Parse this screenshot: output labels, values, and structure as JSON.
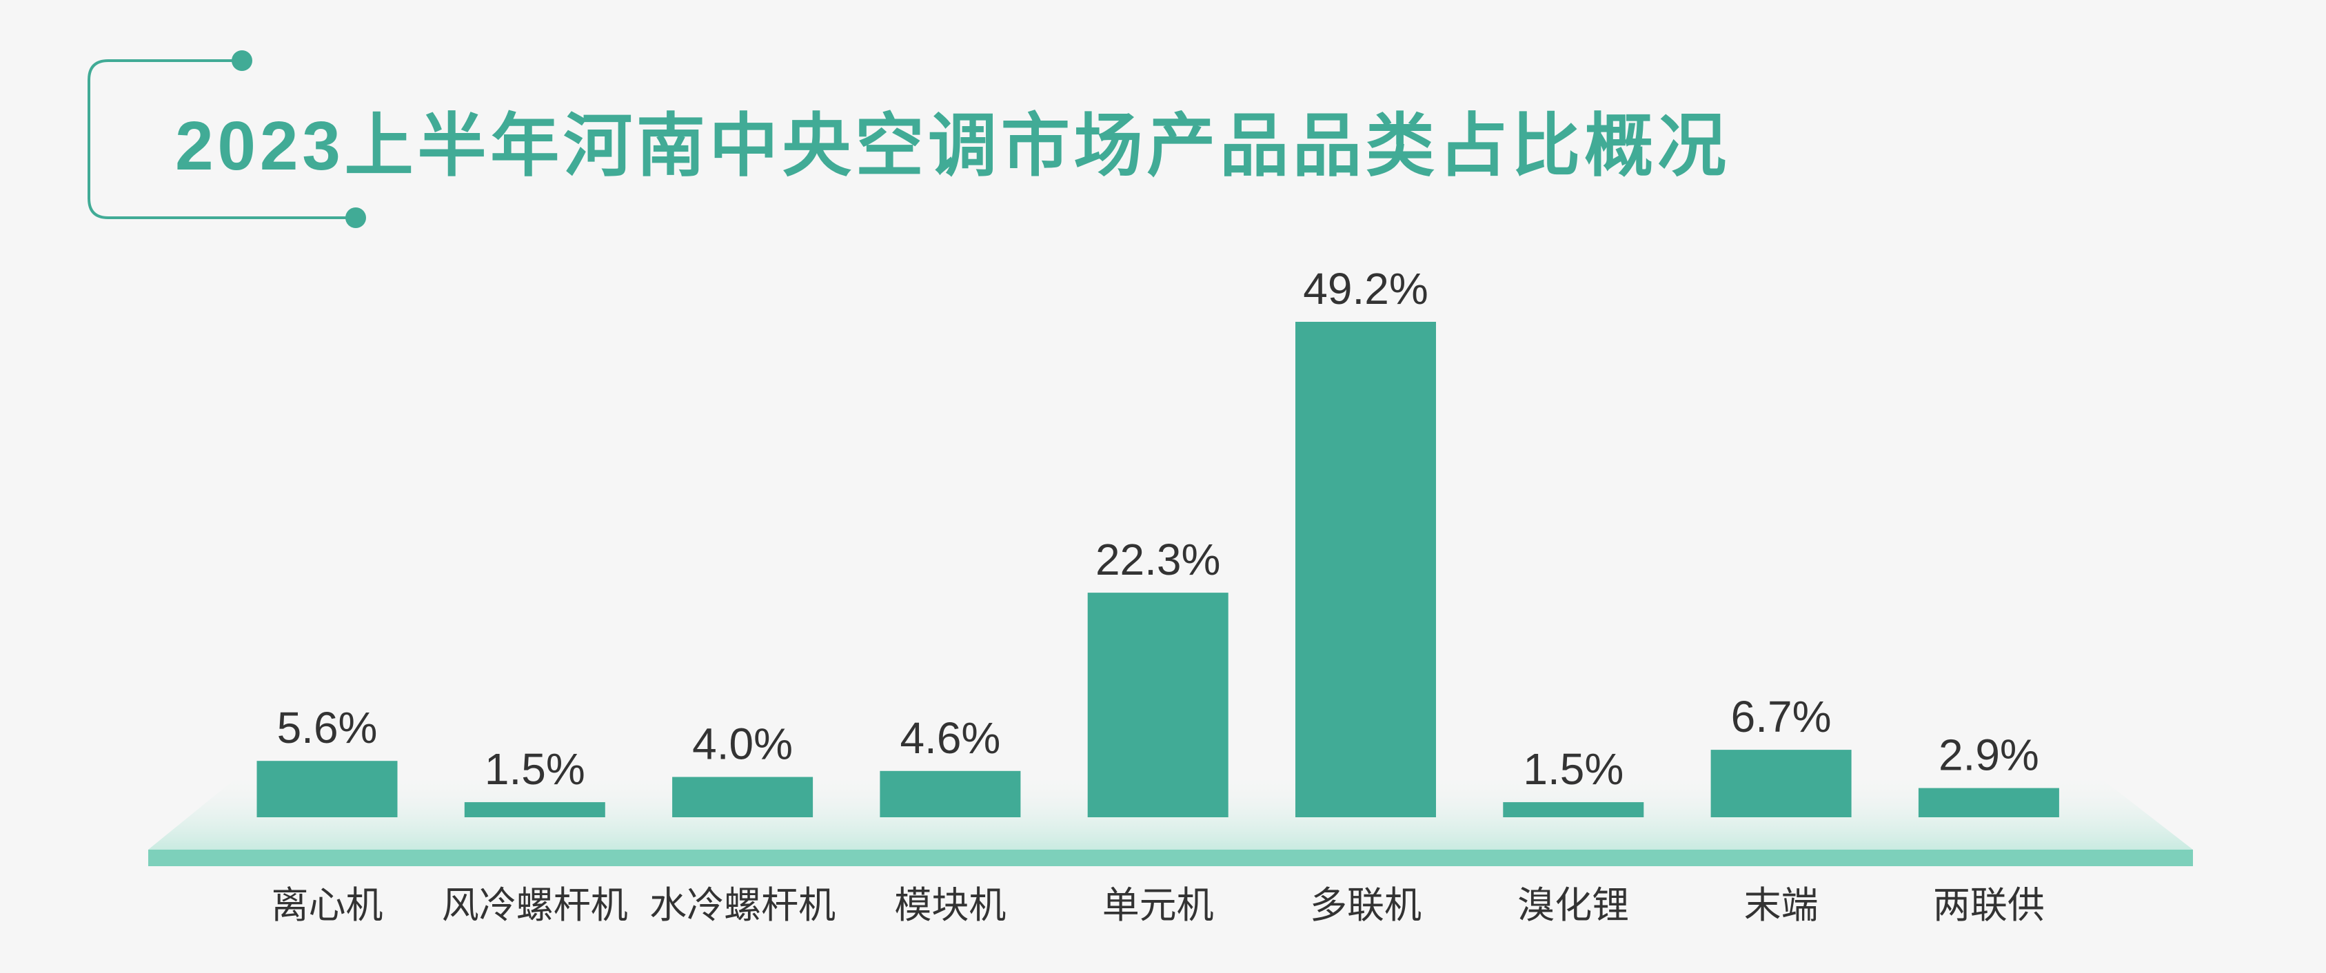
{
  "colors": {
    "accent": "#41ab96",
    "platform_strip": "#7dd0bb",
    "platform_glow": "#c9ebe1",
    "text": "#333333",
    "background": "#f6f6f6"
  },
  "chart_data": {
    "type": "bar",
    "title": "2023上半年河南中央空调市场产品品类占比概况",
    "xlabel": "",
    "ylabel": "",
    "categories": [
      "离心机",
      "风冷螺杆机",
      "水冷螺杆机",
      "模块机",
      "单元机",
      "多联机",
      "溴化锂",
      "末端",
      "两联供"
    ],
    "values": [
      5.6,
      1.5,
      4.0,
      4.6,
      22.3,
      49.2,
      1.5,
      6.7,
      2.9
    ],
    "value_labels": [
      "5.6%",
      "1.5%",
      "4.0%",
      "4.6%",
      "22.3%",
      "49.2%",
      "1.5%",
      "6.7%",
      "2.9%"
    ],
    "axes_visible": false,
    "grid": false,
    "legend": "none"
  }
}
